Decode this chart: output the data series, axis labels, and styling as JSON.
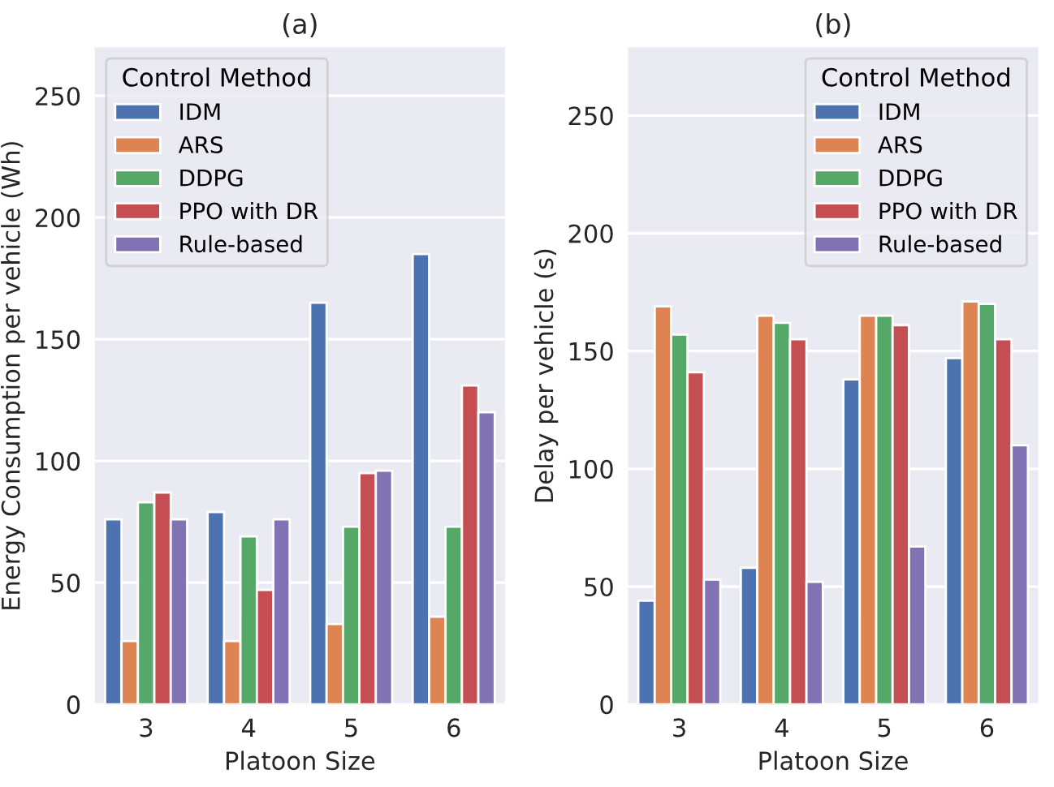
{
  "chart_data": [
    {
      "type": "bar",
      "title": "(a)",
      "xlabel": "Platoon Size",
      "ylabel": "Energy Consumption per vehicle (Wh)",
      "legend_title": "Control Method",
      "legend": "top left",
      "grid": "y",
      "categories": [
        "3",
        "4",
        "5",
        "6"
      ],
      "ylim": [
        0,
        270
      ],
      "yticks": [
        0,
        50,
        100,
        150,
        200,
        250
      ],
      "series": [
        {
          "name": "IDM",
          "color": "#4c72b0",
          "values": [
            76,
            79,
            165,
            185
          ]
        },
        {
          "name": "ARS",
          "color": "#dd8452",
          "values": [
            26,
            26,
            33,
            36
          ]
        },
        {
          "name": "DDPG",
          "color": "#55a868",
          "values": [
            83,
            69,
            73,
            73
          ]
        },
        {
          "name": "PPO with DR",
          "color": "#c44e52",
          "values": [
            87,
            47,
            95,
            131
          ]
        },
        {
          "name": "Rule-based",
          "color": "#8172b3",
          "values": [
            76,
            76,
            96,
            120
          ]
        }
      ]
    },
    {
      "type": "bar",
      "title": "(b)",
      "xlabel": "Platoon Size",
      "ylabel": "Delay per vehicle (s)",
      "legend_title": "Control Method",
      "legend": "top right",
      "grid": "y",
      "categories": [
        "3",
        "4",
        "5",
        "6"
      ],
      "ylim": [
        0,
        279
      ],
      "yticks": [
        0,
        50,
        100,
        150,
        200,
        250
      ],
      "series": [
        {
          "name": "IDM",
          "color": "#4c72b0",
          "values": [
            44,
            58,
            138,
            147
          ]
        },
        {
          "name": "ARS",
          "color": "#dd8452",
          "values": [
            169,
            165,
            165,
            171
          ]
        },
        {
          "name": "DDPG",
          "color": "#55a868",
          "values": [
            157,
            162,
            165,
            170
          ]
        },
        {
          "name": "PPO with DR",
          "color": "#c44e52",
          "values": [
            141,
            155,
            161,
            155
          ]
        },
        {
          "name": "Rule-based",
          "color": "#8172b3",
          "values": [
            53,
            52,
            67,
            110
          ]
        }
      ]
    }
  ]
}
